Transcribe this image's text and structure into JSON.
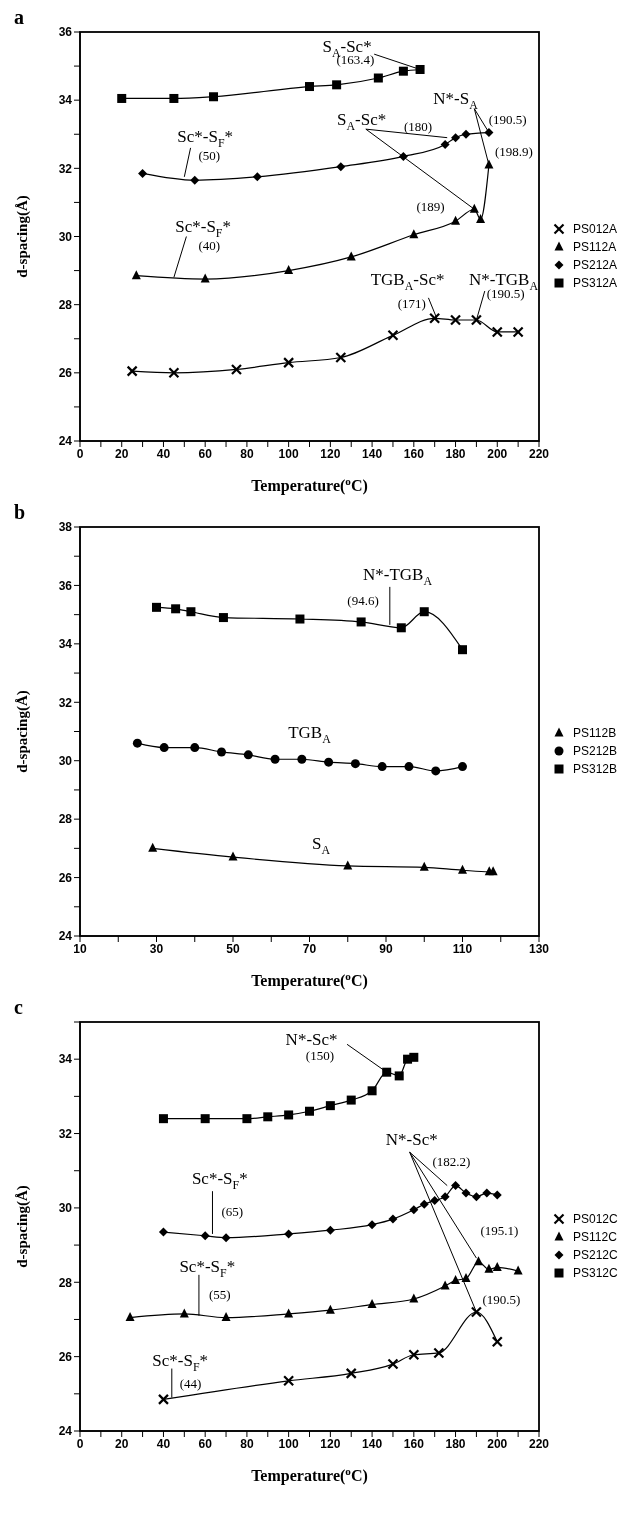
{
  "chart_data": [
    {
      "type": "line",
      "title": "a",
      "xlabel": "Temperature($^{o}$C)",
      "ylabel": "d-spacing(Å)",
      "xlim": [
        0,
        220
      ],
      "ylim": [
        24,
        36
      ],
      "legend": "right",
      "line_style": "solid",
      "xticks": [
        0,
        {
          "value": 10,
          "label": null
        },
        20,
        {
          "value": 30,
          "label": null
        },
        40,
        {
          "value": 50,
          "label": null
        },
        60,
        {
          "value": 70,
          "label": null
        },
        80,
        {
          "value": 90,
          "label": null
        },
        100,
        {
          "value": 110,
          "label": null
        },
        120,
        {
          "value": 130,
          "label": null
        },
        140,
        {
          "value": 150,
          "label": null
        },
        160,
        {
          "value": 170,
          "label": null
        },
        180,
        {
          "value": 190,
          "label": null
        },
        200,
        {
          "value": 210,
          "label": null
        },
        220
      ],
      "yticks": [
        24,
        {
          "value": 25,
          "label": null
        },
        26,
        {
          "value": 27,
          "label": null
        },
        28,
        {
          "value": 29,
          "label": null
        },
        30,
        {
          "value": 31,
          "label": null
        },
        32,
        {
          "value": 33,
          "label": null
        },
        34,
        {
          "value": 35,
          "label": null
        },
        36
      ],
      "series": [
        {
          "name": "PS012A",
          "color": "#000000",
          "marker": "cross",
          "x": [
            25,
            45,
            75,
            100,
            125,
            150,
            170,
            180,
            190,
            200,
            210
          ],
          "values": [
            26.05,
            26.0,
            26.1,
            26.3,
            26.45,
            27.1,
            27.6,
            27.55,
            27.55,
            27.2,
            27.2
          ]
        },
        {
          "name": "PS112A",
          "color": "#000000",
          "marker": "triangle",
          "x": [
            27,
            60,
            100,
            130,
            160,
            180,
            189,
            192,
            196
          ],
          "values": [
            28.85,
            28.75,
            29.0,
            29.4,
            30.05,
            30.45,
            30.8,
            30.5,
            32.1
          ]
        },
        {
          "name": "PS212A",
          "color": "#000000",
          "marker": "diamond",
          "x": [
            30,
            55,
            85,
            125,
            155,
            175,
            180,
            185,
            196
          ],
          "values": [
            31.85,
            31.65,
            31.75,
            32.05,
            32.35,
            32.7,
            32.9,
            33.0,
            33.05
          ]
        },
        {
          "name": "PS312A",
          "color": "#000000",
          "marker": "square",
          "x": [
            20,
            45,
            64,
            110,
            123,
            143,
            155,
            163
          ],
          "values": [
            34.05,
            34.05,
            34.1,
            34.4,
            34.45,
            34.65,
            34.85,
            34.9
          ]
        }
      ],
      "annotations": [
        {
          "text": "S$_{A}$-Sc*",
          "x": 163,
          "y": 34.9
        },
        {
          "text": "(163.4)",
          "x": 163,
          "y": 34.9
        },
        {
          "text": "N*-S$_{A}$",
          "x": 196,
          "y": 33.05
        },
        {
          "text": "(190.5)",
          "x": 196,
          "y": 33.05
        },
        {
          "text": "(198.9)",
          "x": 196,
          "y": 32.1
        },
        {
          "text": "S$_{A}$-Sc*",
          "x": 176,
          "y": 32.9
        },
        {
          "text": "(180)",
          "x": 176,
          "y": 32.9
        },
        {
          "text": "(189)",
          "x": 189,
          "y": 30.8
        },
        {
          "text": "Sc*-S$_{F}$*",
          "x": 50,
          "y": 31.75
        },
        {
          "text": "(50)",
          "x": 50,
          "y": 31.75
        },
        {
          "text": "Sc*-S$_{F}$*",
          "x": 45,
          "y": 28.8
        },
        {
          "text": "(40)",
          "x": 45,
          "y": 28.8
        },
        {
          "text": "TGB$_{A}$-Sc*",
          "x": 171,
          "y": 27.6
        },
        {
          "text": "(171)",
          "x": 171,
          "y": 27.6
        },
        {
          "text": "N*-TGB$_{A}$",
          "x": 190,
          "y": 27.55
        },
        {
          "text": "(190.5)",
          "x": 190,
          "y": 27.55
        }
      ]
    },
    {
      "type": "line",
      "title": "b",
      "xlabel": "Temperature($^{o}$C)",
      "ylabel": "d-spacing(Å)",
      "xlim": [
        10,
        130
      ],
      "ylim": [
        24,
        38
      ],
      "legend": "right",
      "line_style": "solid",
      "xticks": [
        10,
        {
          "value": 20,
          "label": null
        },
        30,
        {
          "value": 40,
          "label": null
        },
        50,
        {
          "value": 60,
          "label": null
        },
        70,
        {
          "value": 80,
          "label": null
        },
        90,
        {
          "value": 100,
          "label": null
        },
        110,
        {
          "value": 120,
          "label": null
        },
        130
      ],
      "yticks": [
        24,
        {
          "value": 25,
          "label": null
        },
        26,
        {
          "value": 27,
          "label": null
        },
        28,
        {
          "value": 29,
          "label": null
        },
        30,
        {
          "value": 31,
          "label": null
        },
        32,
        {
          "value": 33,
          "label": null
        },
        34,
        {
          "value": 35,
          "label": null
        },
        36,
        {
          "value": 37,
          "label": null
        },
        38
      ],
      "series": [
        {
          "name": "PS112B",
          "color": "#000000",
          "marker": "triangle",
          "x": [
            29,
            50,
            80,
            100,
            110,
            117,
            118
          ],
          "values": [
            27.0,
            26.7,
            26.4,
            26.35,
            26.25,
            26.2,
            26.2
          ]
        },
        {
          "name": "PS212B",
          "color": "#000000",
          "marker": "circle",
          "x": [
            25,
            32,
            40,
            47,
            54,
            61,
            68,
            75,
            82,
            89,
            96,
            103,
            110
          ],
          "values": [
            30.6,
            30.45,
            30.45,
            30.3,
            30.2,
            30.05,
            30.05,
            29.95,
            29.9,
            29.8,
            29.8,
            29.65,
            29.8
          ]
        },
        {
          "name": "PS312B",
          "color": "#000000",
          "marker": "square",
          "x": [
            30,
            35,
            39,
            47.5,
            67.5,
            83.5,
            94,
            100,
            110
          ],
          "values": [
            35.25,
            35.2,
            35.1,
            34.9,
            34.85,
            34.75,
            34.55,
            35.1,
            33.8
          ]
        }
      ],
      "annotations": [
        {
          "text": "N*-TGB$_{A}$",
          "x": 91,
          "y": 34.65
        },
        {
          "text": "(94.6)",
          "x": 91,
          "y": 34.65
        },
        "TGB$_{A}$",
        "S$_{A}$"
      ]
    },
    {
      "type": "line",
      "title": "c",
      "xlabel": "Temperature($^{o}$C)",
      "ylabel": "d-spacing(Å)",
      "xlim": [
        0,
        220
      ],
      "ylim": [
        24,
        35
      ],
      "legend": "right",
      "line_style": "solid",
      "xticks": [
        0,
        {
          "value": 10,
          "label": null
        },
        20,
        {
          "value": 30,
          "label": null
        },
        40,
        {
          "value": 50,
          "label": null
        },
        60,
        {
          "value": 70,
          "label": null
        },
        80,
        {
          "value": 90,
          "label": null
        },
        100,
        {
          "value": 110,
          "label": null
        },
        120,
        {
          "value": 130,
          "label": null
        },
        140,
        {
          "value": 150,
          "label": null
        },
        160,
        {
          "value": 170,
          "label": null
        },
        180,
        {
          "value": 190,
          "label": null
        },
        200,
        {
          "value": 210,
          "label": null
        },
        220
      ],
      "yticks": [
        24,
        {
          "value": 25,
          "label": null
        },
        26,
        {
          "value": 27,
          "label": null
        },
        28,
        {
          "value": 29,
          "label": null
        },
        30,
        {
          "value": 31,
          "label": null
        },
        32,
        {
          "value": 33,
          "label": null
        },
        34,
        {
          "value": 35,
          "label": null
        }
      ],
      "series": [
        {
          "name": "PS012C",
          "color": "#000000",
          "marker": "cross",
          "x": [
            40,
            100,
            130,
            150,
            160,
            172,
            190,
            200
          ],
          "values": [
            24.85,
            25.35,
            25.55,
            25.8,
            26.05,
            26.1,
            27.2,
            26.4
          ]
        },
        {
          "name": "PS112C",
          "color": "#000000",
          "marker": "triangle",
          "x": [
            24,
            50,
            70,
            100,
            120,
            140,
            160,
            175,
            180,
            185,
            191,
            196,
            200,
            210
          ],
          "values": [
            27.05,
            27.15,
            27.05,
            27.15,
            27.25,
            27.4,
            27.55,
            27.9,
            28.05,
            28.1,
            28.55,
            28.35,
            28.4,
            28.3
          ]
        },
        {
          "name": "PS212C",
          "color": "#000000",
          "marker": "diamond",
          "x": [
            40,
            60,
            70,
            100,
            120,
            140,
            150,
            160,
            165,
            170,
            175,
            180,
            185,
            190,
            195,
            200
          ],
          "values": [
            29.35,
            29.25,
            29.2,
            29.3,
            29.4,
            29.55,
            29.7,
            29.95,
            30.1,
            30.2,
            30.3,
            30.6,
            30.4,
            30.3,
            30.4,
            30.35
          ]
        },
        {
          "name": "PS312C",
          "color": "#000000",
          "marker": "square",
          "x": [
            40,
            60,
            80,
            90,
            100,
            110,
            120,
            130,
            140,
            147,
            153,
            157,
            160
          ],
          "values": [
            32.4,
            32.4,
            32.4,
            32.45,
            32.5,
            32.6,
            32.75,
            32.9,
            33.15,
            33.65,
            33.55,
            34.0,
            34.05
          ]
        }
      ],
      "annotations": [
        {
          "text": "N*-Sc*",
          "x": 147,
          "y": 33.65
        },
        {
          "text": "(150)",
          "x": 147,
          "y": 33.65
        },
        {
          "text": "Sc*-S$_{F}$*",
          "x": 63.5,
          "y": 29.3
        },
        {
          "text": "(65)",
          "x": 63.5,
          "y": 29.3
        },
        {
          "text": "Sc*-S$_{F}$*",
          "x": 57,
          "y": 27.1
        },
        {
          "text": "(55)",
          "x": 57,
          "y": 27.1
        },
        {
          "text": "Sc*-S$_{F}$*",
          "x": 44,
          "y": 24.9
        },
        {
          "text": "(44)",
          "x": 44,
          "y": 24.9
        },
        {
          "text": "N*-Sc*",
          "x": 176,
          "y": 30.6
        },
        {
          "text": "(182.2)",
          "x": 176,
          "y": 30.6
        },
        {
          "text": "(195.1)",
          "x": 190,
          "y": 28.65
        },
        {
          "text": "(190.5)",
          "x": 190,
          "y": 27.2
        }
      ]
    }
  ]
}
